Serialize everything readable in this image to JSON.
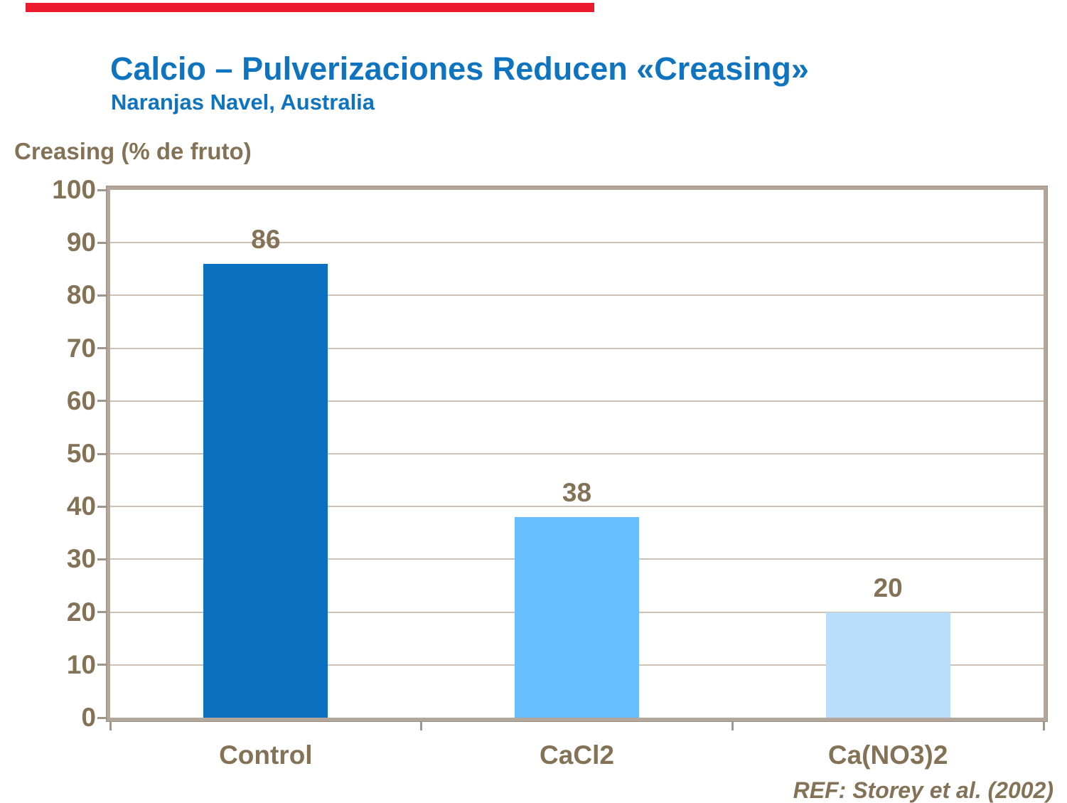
{
  "slide": {
    "accent_bar_color": "#EC1C2E",
    "title": "Calcio – Pulverizaciones Reducen «Creasing»",
    "subtitle": "Naranjas Navel, Australia",
    "axis_title": "Creasing (% de fruto)",
    "reference": "REF: Storey et al. (2002)"
  },
  "chart_data": {
    "type": "bar",
    "title": "Calcio – Pulverizaciones Reducen «Creasing»",
    "subtitle": "Naranjas Navel, Australia",
    "ylabel": "Creasing (% de fruto)",
    "xlabel": "",
    "categories": [
      "Control",
      "CaCl2",
      "Ca(NO3)2"
    ],
    "values": [
      86,
      38,
      20
    ],
    "bar_colors": [
      "#0B70C0",
      "#67BEFC",
      "#B9DDFA"
    ],
    "ylim": [
      0,
      100
    ],
    "ytick_step": 10,
    "grid": true,
    "legend": false,
    "annotation": "REF: Storey et al. (2002)"
  },
  "colors": {
    "title_blue": "#0E74C0",
    "text_brown": "#847256",
    "gridline": "#CDC2B4",
    "plot_border": "#B2A79A",
    "tick": "#A1968A"
  }
}
